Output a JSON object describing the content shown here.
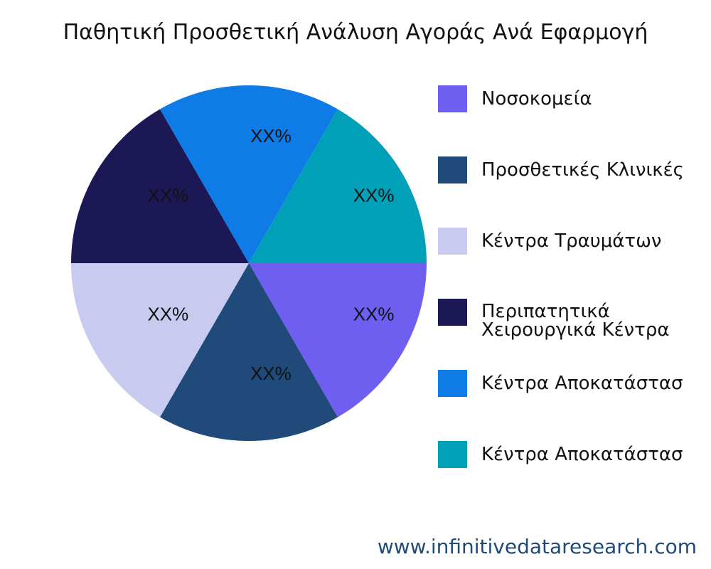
{
  "chart_data": {
    "type": "pie",
    "title": "Παθητική Προσθετική Ανάλυση Αγοράς Ανά Εφαρμογή",
    "start_angle": "3 o'clock, clockwise",
    "legend_position": "right",
    "slices": [
      {
        "name": "Νοσοκομεία",
        "value": 1,
        "label": "XX%",
        "color": "#6f5ff0"
      },
      {
        "name": "Προσθετικές Κλινικές",
        "value": 1,
        "label": "XX%",
        "color": "#1f4a7a"
      },
      {
        "name": "Κέντρα Τραυμάτων",
        "value": 1,
        "label": "XX%",
        "color": "#c8caf0"
      },
      {
        "name": "Περιπατητικά\nΧειρουργικά Κέντρα",
        "value": 1,
        "label": "XX%",
        "color": "#1c1856"
      },
      {
        "name": "Κέντρα Αποκατάστασ",
        "value": 1,
        "label": "XX%",
        "color": "#0e7be6"
      },
      {
        "name": "Κέντρα Αποκατάστασ",
        "value": 1,
        "label": "XX%",
        "color": "#00a0b8"
      }
    ]
  },
  "footer": "www.infinitivedataresearch.com"
}
